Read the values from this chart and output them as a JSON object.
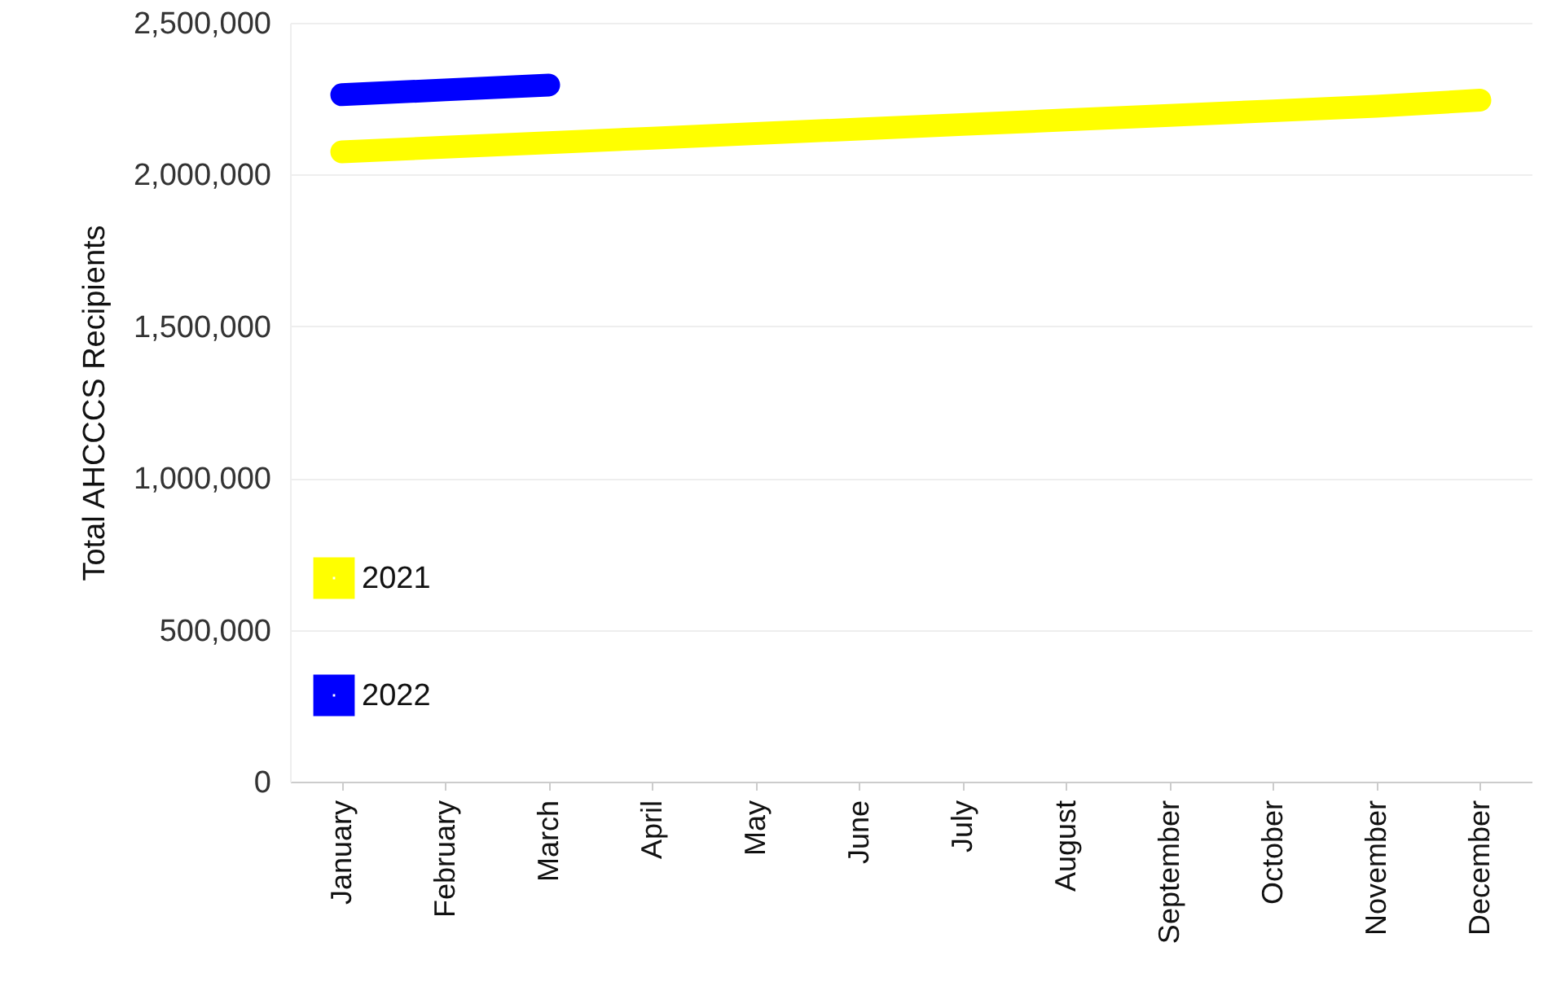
{
  "chart_data": {
    "type": "line",
    "ylabel": "Total AHCCCS Recipients",
    "categories": [
      "January",
      "February",
      "March",
      "April",
      "May",
      "June",
      "July",
      "August",
      "September",
      "October",
      "November",
      "December"
    ],
    "series": [
      {
        "name": "2021",
        "color": "#ffff00",
        "values": [
          2075000,
          2090000,
          2105000,
          2120000,
          2135000,
          2150000,
          2165000,
          2180000,
          2195000,
          2210000,
          2225000,
          2245000
        ]
      },
      {
        "name": "2022",
        "color": "#0000ff",
        "values": [
          2263000,
          2279000,
          2295000,
          null,
          null,
          null,
          null,
          null,
          null,
          null,
          null,
          null
        ]
      }
    ],
    "ylim": [
      0,
      2500000
    ],
    "yticks": [
      {
        "value": 0,
        "label": "0"
      },
      {
        "value": 500000,
        "label": "500,000"
      },
      {
        "value": 1000000,
        "label": "1,000,000"
      },
      {
        "value": 1500000,
        "label": "1,500,000"
      },
      {
        "value": 2000000,
        "label": "2,000,000"
      },
      {
        "value": 2500000,
        "label": "2,500,000"
      }
    ],
    "grid": "y",
    "legend": "bottom left",
    "marker": "none",
    "line_style": "solid"
  }
}
